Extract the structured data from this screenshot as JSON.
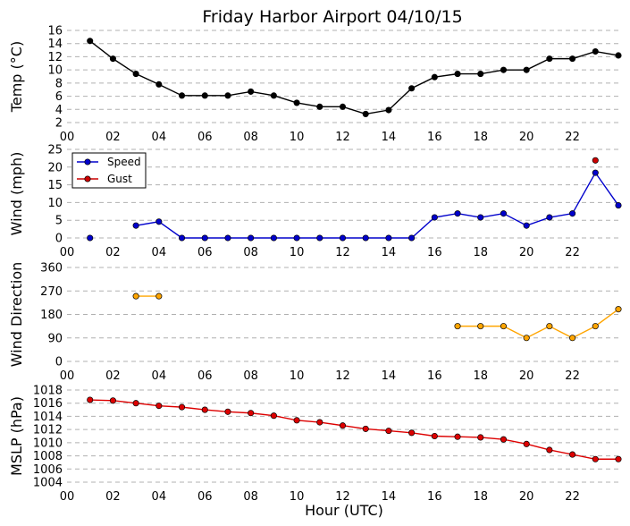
{
  "title": "Friday Harbor Airport 04/10/15",
  "xlabel": "Hour (UTC)",
  "xticks": [
    "00",
    "02",
    "04",
    "06",
    "08",
    "10",
    "12",
    "14",
    "16",
    "18",
    "20",
    "22"
  ],
  "chart_data": [
    {
      "type": "line",
      "ylabel": "Temp ($^\\circ$C)",
      "ylabel_display": "Temp (°C)",
      "xlim": [
        0,
        24
      ],
      "ylim": [
        2,
        16
      ],
      "yticks": [
        2,
        4,
        6,
        8,
        10,
        12,
        14,
        16
      ],
      "series": [
        {
          "color": "#000000",
          "x": [
            1,
            2,
            3,
            4,
            5,
            6,
            7,
            8,
            9,
            10,
            11,
            12,
            13,
            14,
            15,
            16,
            17,
            18,
            19,
            20,
            21,
            22,
            23,
            24
          ],
          "y": [
            14.4,
            11.7,
            9.4,
            7.8,
            6.1,
            6.1,
            6.1,
            6.7,
            6.1,
            5.0,
            4.4,
            4.4,
            3.3,
            3.9,
            7.2,
            8.9,
            9.4,
            9.4,
            10.0,
            10.0,
            11.7,
            11.7,
            12.8,
            12.2
          ]
        }
      ]
    },
    {
      "type": "line",
      "ylabel": "Wind (mph)",
      "xlim": [
        0,
        24
      ],
      "ylim": [
        0,
        25
      ],
      "yticks": [
        0,
        5,
        10,
        15,
        20,
        25
      ],
      "legend": "top-left",
      "series": [
        {
          "name": "Speed",
          "color": "#0000cc",
          "x": [
            1,
            3,
            4,
            5,
            6,
            7,
            8,
            9,
            10,
            11,
            12,
            13,
            14,
            15,
            16,
            17,
            18,
            19,
            20,
            21,
            22,
            23,
            24
          ],
          "y": [
            0,
            3.5,
            4.6,
            0,
            0,
            0,
            0,
            0,
            0,
            0,
            0,
            0,
            0,
            0,
            5.8,
            6.9,
            5.8,
            6.9,
            3.5,
            5.8,
            6.9,
            18.4,
            9.2
          ],
          "segments": [
            [
              1,
              1
            ],
            [
              3,
              24
            ]
          ]
        },
        {
          "name": "Gust",
          "color": "#cc0000",
          "x": [
            23
          ],
          "y": [
            21.9
          ]
        }
      ]
    },
    {
      "type": "line",
      "ylabel": "Wind Direction",
      "xlim": [
        0,
        24
      ],
      "ylim": [
        0,
        360
      ],
      "yticks": [
        0,
        90,
        180,
        270,
        360
      ],
      "series": [
        {
          "color": "#ffa500",
          "x": [
            3,
            4,
            17,
            18,
            19,
            20,
            21,
            22,
            23,
            24
          ],
          "y": [
            250,
            250,
            135,
            135,
            135,
            90,
            135,
            90,
            135,
            200
          ],
          "segments": [
            [
              3,
              4
            ],
            [
              17,
              24
            ]
          ]
        }
      ]
    },
    {
      "type": "line",
      "ylabel": "MSLP (hPa)",
      "xlim": [
        0,
        24
      ],
      "ylim": [
        1004,
        1018
      ],
      "yticks": [
        1004,
        1006,
        1008,
        1010,
        1012,
        1014,
        1016,
        1018
      ],
      "series": [
        {
          "color": "#dd0000",
          "x": [
            1,
            2,
            3,
            4,
            5,
            6,
            7,
            8,
            9,
            10,
            11,
            12,
            13,
            14,
            15,
            16,
            17,
            18,
            19,
            20,
            21,
            22,
            23,
            24
          ],
          "y": [
            1016.5,
            1016.4,
            1016.0,
            1015.6,
            1015.4,
            1015.0,
            1014.7,
            1014.5,
            1014.1,
            1013.4,
            1013.1,
            1012.6,
            1012.1,
            1011.8,
            1011.5,
            1011.0,
            1010.9,
            1010.8,
            1010.5,
            1009.8,
            1008.9,
            1008.2,
            1007.5,
            1007.5
          ]
        }
      ]
    }
  ]
}
